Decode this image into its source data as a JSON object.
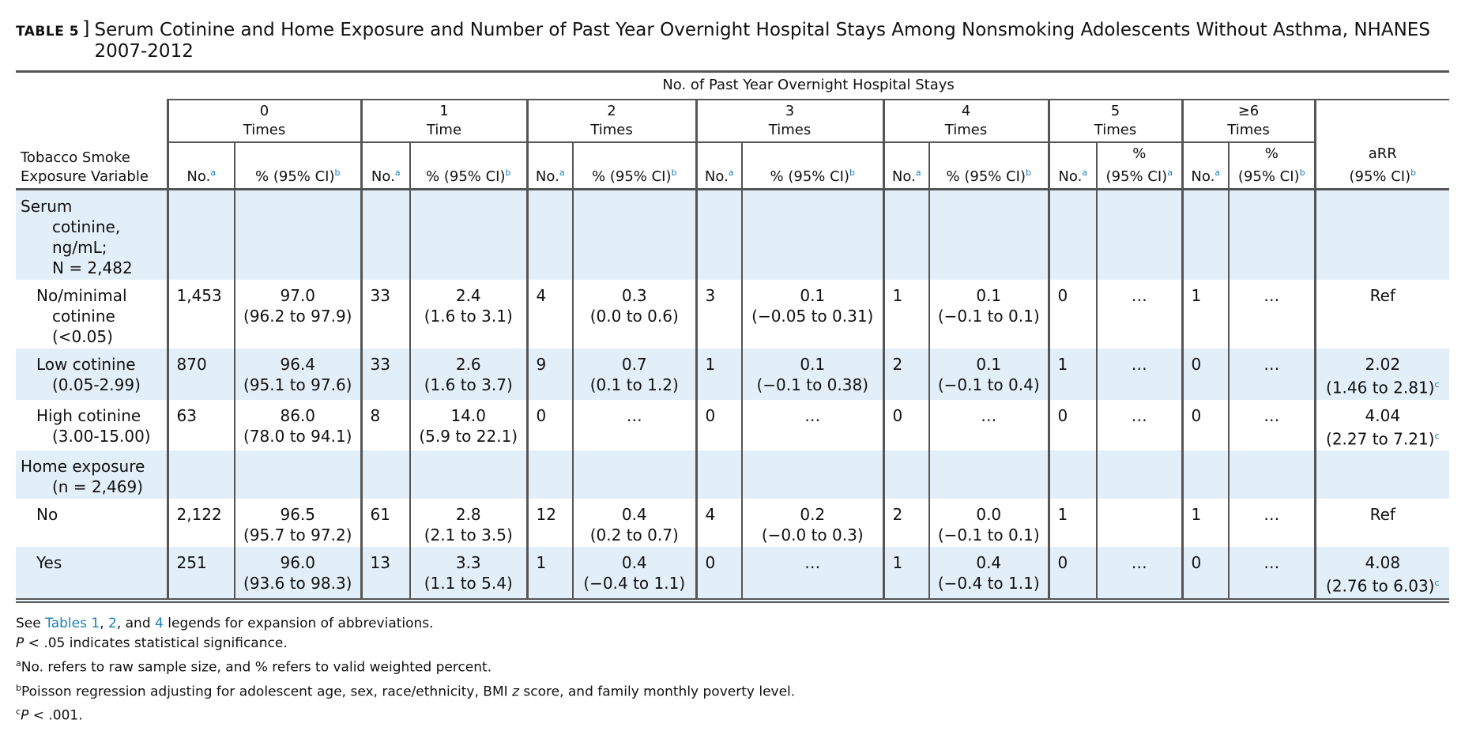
{
  "title": {
    "label": "TABLE 5",
    "bracket": "]",
    "text": "Serum Cotinine and Home Exposure and Number of Past Year Overnight Hospital Stays Among Nonsmoking Adolescents Without Asthma, NHANES 2007-2012"
  },
  "header": {
    "spanner": "No. of Past Year Overnight Hospital Stays",
    "groups": [
      {
        "n": "0",
        "unit": "Times"
      },
      {
        "n": "1",
        "unit": "Time"
      },
      {
        "n": "2",
        "unit": "Times"
      },
      {
        "n": "3",
        "unit": "Times"
      },
      {
        "n": "4",
        "unit": "Times"
      },
      {
        "n": "5",
        "unit": "Times"
      },
      {
        "n": "≥6",
        "unit": "Times"
      }
    ],
    "row_label_1": "Tobacco Smoke",
    "row_label_2": "Exposure Variable",
    "no": "No.",
    "pct": "% (95% CI)",
    "pct_short": "%",
    "ci": "(95% CI)",
    "arr": "aRR",
    "sup_a": "a",
    "sup_b": "b",
    "sup_c": "c"
  },
  "sections": {
    "serum": [
      "Serum",
      "cotinine,",
      "ng/mL;",
      "N = 2,482"
    ],
    "home": [
      "Home exposure",
      "(n = 2,469)"
    ]
  },
  "rows": [
    {
      "label": [
        "No/minimal",
        "cotinine",
        "(<0.05)"
      ],
      "cells": [
        {
          "no": "1,453",
          "pct": "97.0",
          "ci": "(96.2 to 97.9)"
        },
        {
          "no": "33",
          "pct": "2.4",
          "ci": "(1.6 to 3.1)"
        },
        {
          "no": "4",
          "pct": "0.3",
          "ci": "(0.0 to 0.6)"
        },
        {
          "no": "3",
          "pct": "0.1",
          "ci": "(−0.05 to 0.31)"
        },
        {
          "no": "1",
          "pct": "0.1",
          "ci": "(−0.1 to 0.1)"
        },
        {
          "no": "0",
          "pct": "…",
          "ci": ""
        },
        {
          "no": "1",
          "pct": "…",
          "ci": ""
        }
      ],
      "arr": "Ref",
      "arr_ci": ""
    },
    {
      "label": [
        "Low cotinine",
        "(0.05-2.99)"
      ],
      "cells": [
        {
          "no": "870",
          "pct": "96.4",
          "ci": "(95.1 to 97.6)"
        },
        {
          "no": "33",
          "pct": "2.6",
          "ci": "(1.6 to 3.7)"
        },
        {
          "no": "9",
          "pct": "0.7",
          "ci": "(0.1 to 1.2)"
        },
        {
          "no": "1",
          "pct": "0.1",
          "ci": "(−0.1 to 0.38)"
        },
        {
          "no": "2",
          "pct": "0.1",
          "ci": "(−0.1 to 0.4)"
        },
        {
          "no": "1",
          "pct": "…",
          "ci": ""
        },
        {
          "no": "0",
          "pct": "…",
          "ci": ""
        }
      ],
      "arr": "2.02",
      "arr_ci": "(1.46 to 2.81)"
    },
    {
      "label": [
        "High cotinine",
        "(3.00-15.00)"
      ],
      "cells": [
        {
          "no": "63",
          "pct": "86.0",
          "ci": "(78.0 to 94.1)"
        },
        {
          "no": "8",
          "pct": "14.0",
          "ci": "(5.9 to 22.1)"
        },
        {
          "no": "0",
          "pct": "…",
          "ci": ""
        },
        {
          "no": "0",
          "pct": "…",
          "ci": ""
        },
        {
          "no": "0",
          "pct": "…",
          "ci": ""
        },
        {
          "no": "0",
          "pct": "…",
          "ci": ""
        },
        {
          "no": "0",
          "pct": "…",
          "ci": ""
        }
      ],
      "arr": "4.04",
      "arr_ci": "(2.27 to 7.21)"
    },
    {
      "label": [
        "No"
      ],
      "cells": [
        {
          "no": "2,122",
          "pct": "96.5",
          "ci": "(95.7 to 97.2)"
        },
        {
          "no": "61",
          "pct": "2.8",
          "ci": "(2.1 to 3.5)"
        },
        {
          "no": "12",
          "pct": "0.4",
          "ci": "(0.2 to 0.7)"
        },
        {
          "no": "4",
          "pct": "0.2",
          "ci": "(−0.0 to 0.3)"
        },
        {
          "no": "2",
          "pct": "0.0",
          "ci": "(−0.1 to 0.1)"
        },
        {
          "no": "1",
          "pct": "",
          "ci": ""
        },
        {
          "no": "1",
          "pct": "…",
          "ci": ""
        }
      ],
      "arr": "Ref",
      "arr_ci": ""
    },
    {
      "label": [
        "Yes"
      ],
      "cells": [
        {
          "no": "251",
          "pct": "96.0",
          "ci": "(93.6 to 98.3)"
        },
        {
          "no": "13",
          "pct": "3.3",
          "ci": "(1.1 to 5.4)"
        },
        {
          "no": "1",
          "pct": "0.4",
          "ci": "(−0.4 to 1.1)"
        },
        {
          "no": "0",
          "pct": "…",
          "ci": ""
        },
        {
          "no": "1",
          "pct": "0.4",
          "ci": "(−0.4 to 1.1)"
        },
        {
          "no": "0",
          "pct": "…",
          "ci": ""
        },
        {
          "no": "0",
          "pct": "…",
          "ci": ""
        }
      ],
      "arr": "4.08",
      "arr_ci": "(2.76 to 6.03)"
    }
  ],
  "notes": {
    "see": "See",
    "tables_word": "Tables",
    "t1": "1",
    "comma": ",",
    "t2": "2",
    "and": ", and",
    "t4": "4",
    "see_rest": "legends for expansion of abbreviations.",
    "p_letter": "P",
    "p_rest": "< .05 indicates statistical significance.",
    "a_mark": "a",
    "a_text": "No. refers to raw sample size, and % refers to valid weighted percent.",
    "b_mark": "b",
    "b_text_1": "Poisson regression adjusting for adolescent age, sex, race/ethnicity, BMI",
    "b_z": "z",
    "b_text_2": "score, and family monthly poverty level.",
    "c_mark": "c",
    "c_p": "P",
    "c_text": "< .001."
  }
}
